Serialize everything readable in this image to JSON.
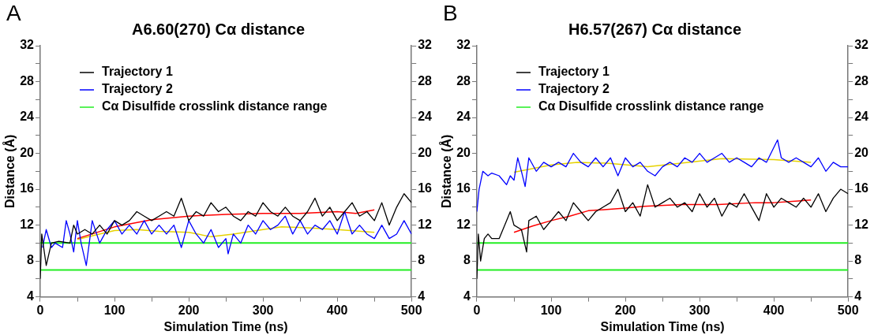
{
  "chart_data": [
    {
      "type": "line",
      "title": "A6.60(270) Cα distance",
      "xlabel": "Simulation Time (ns)",
      "ylabel": "Distance (Å)",
      "annotations": [
        "A"
      ],
      "legend": "top left",
      "grid": false,
      "xlim": [
        0,
        500
      ],
      "xticks": [
        0,
        {
          "value": 50,
          "label": null
        },
        100,
        {
          "value": 150,
          "label": null
        },
        200,
        {
          "value": 250,
          "label": null
        },
        300,
        {
          "value": 350,
          "label": null
        },
        400,
        {
          "value": 450,
          "label": null
        },
        500
      ],
      "ylim": [
        4,
        32
      ],
      "yticks": [
        4,
        {
          "value": 6,
          "label": null
        },
        8,
        {
          "value": 10,
          "label": null
        },
        12,
        {
          "value": 14,
          "label": null
        },
        16,
        {
          "value": 18,
          "label": null
        },
        20,
        {
          "value": 22,
          "label": null
        },
        24,
        {
          "value": 26,
          "label": null
        },
        28,
        {
          "value": 30,
          "label": null
        },
        32
      ],
      "y2lim": [
        4,
        32
      ],
      "y2ticks": [
        4,
        {
          "value": 6,
          "label": null
        },
        8,
        {
          "value": 10,
          "label": null
        },
        12,
        {
          "value": 14,
          "label": null
        },
        16,
        {
          "value": 18,
          "label": null
        },
        20,
        {
          "value": 22,
          "label": null
        },
        24,
        {
          "value": 26,
          "label": null
        },
        28,
        {
          "value": 30,
          "label": null
        },
        32
      ],
      "ref_lines": [
        {
          "axis": "y",
          "value": 10,
          "label": "Cα Disulfide crosslink distance range",
          "color": "#22ee22"
        },
        {
          "axis": "y",
          "value": 7,
          "color": "#22ee22"
        }
      ],
      "series": [
        {
          "name": "Trajectory 1",
          "color": "#000000",
          "x": [
            0,
            2,
            8,
            15,
            25,
            40,
            45,
            50,
            60,
            70,
            80,
            90,
            100,
            110,
            120,
            130,
            140,
            150,
            160,
            170,
            180,
            190,
            200,
            210,
            220,
            230,
            240,
            250,
            260,
            270,
            280,
            290,
            300,
            310,
            320,
            330,
            340,
            350,
            360,
            370,
            380,
            390,
            400,
            410,
            420,
            430,
            440,
            450,
            460,
            470,
            480,
            490,
            500
          ],
          "values": [
            6,
            11,
            7.5,
            10,
            10.2,
            10,
            12,
            11,
            11.5,
            11,
            12,
            11,
            12.5,
            12,
            12.5,
            13.5,
            13,
            12.5,
            13,
            13.5,
            13,
            15,
            12.5,
            13.5,
            13,
            14.5,
            13.5,
            14,
            13,
            12.5,
            13.5,
            13,
            14.5,
            13.5,
            13,
            14,
            13,
            12.5,
            13.5,
            15,
            13,
            14,
            12.5,
            13.5,
            14.5,
            13,
            13.5,
            12.5,
            14.5,
            12,
            14,
            15.5,
            14.5
          ]
        },
        {
          "name": "Trajectory 2",
          "color": "#0000ff",
          "x": [
            3,
            8,
            15,
            20,
            30,
            35,
            40,
            45,
            50,
            55,
            62,
            70,
            80,
            90,
            100,
            110,
            120,
            130,
            140,
            150,
            160,
            170,
            180,
            190,
            200,
            210,
            220,
            230,
            240,
            250,
            253,
            260,
            270,
            280,
            290,
            300,
            310,
            320,
            330,
            340,
            350,
            360,
            370,
            380,
            390,
            400,
            410,
            420,
            430,
            440,
            450,
            460,
            470,
            480,
            490,
            500
          ],
          "values": [
            9.5,
            11.5,
            9.5,
            10,
            9.5,
            12.5,
            11,
            9,
            12.5,
            10,
            7.5,
            12.5,
            10,
            11.5,
            12.5,
            11,
            12,
            11,
            12.5,
            11,
            12,
            11,
            12,
            9.5,
            12.5,
            11,
            10,
            11.5,
            9.5,
            10.5,
            8.8,
            11,
            10,
            12,
            11,
            12.5,
            11.5,
            12,
            13,
            11,
            12.5,
            11,
            12,
            11.5,
            12.5,
            11,
            13.5,
            11,
            12,
            11,
            10.5,
            12,
            10.5,
            11,
            12.5,
            11
          ]
        },
        {
          "type": "line",
          "color": "#ff0000",
          "x": [
            50,
            100,
            150,
            200,
            250,
            300,
            350,
            400,
            425,
            450
          ],
          "values": [
            10.5,
            11.8,
            12.6,
            13,
            13.2,
            13.3,
            13.3,
            13.5,
            13.3,
            13.7
          ]
        },
        {
          "type": "line",
          "color": "#e6d200",
          "x": [
            50,
            75,
            100,
            130,
            160,
            200,
            230,
            260,
            300,
            325,
            360,
            400,
            450
          ],
          "values": [
            10.4,
            10.9,
            11.4,
            11.5,
            11.3,
            11.2,
            10.7,
            11,
            11.5,
            11.8,
            11.7,
            11.5,
            11.2
          ]
        }
      ]
    },
    {
      "type": "line",
      "title": "H6.57(267) Cα distance",
      "xlabel": "Simulation Time (ns)",
      "ylabel": "Distance (Å)",
      "annotations": [
        "B"
      ],
      "legend": "top left",
      "grid": false,
      "xlim": [
        0,
        500
      ],
      "xticks": [
        0,
        {
          "value": 50,
          "label": null
        },
        100,
        {
          "value": 150,
          "label": null
        },
        200,
        {
          "value": 250,
          "label": null
        },
        300,
        {
          "value": 350,
          "label": null
        },
        400,
        {
          "value": 450,
          "label": null
        },
        500
      ],
      "ylim": [
        4,
        32
      ],
      "yticks": [
        4,
        {
          "value": 6,
          "label": null
        },
        8,
        {
          "value": 10,
          "label": null
        },
        12,
        {
          "value": 14,
          "label": null
        },
        16,
        {
          "value": 18,
          "label": null
        },
        20,
        {
          "value": 22,
          "label": null
        },
        24,
        {
          "value": 26,
          "label": null
        },
        28,
        {
          "value": 30,
          "label": null
        },
        32
      ],
      "y2lim": [
        4,
        32
      ],
      "y2ticks": [
        4,
        {
          "value": 6,
          "label": null
        },
        8,
        {
          "value": 10,
          "label": null
        },
        12,
        {
          "value": 14,
          "label": null
        },
        16,
        {
          "value": 18,
          "label": null
        },
        20,
        {
          "value": 22,
          "label": null
        },
        24,
        {
          "value": 26,
          "label": null
        },
        28,
        {
          "value": 30,
          "label": null
        },
        32
      ],
      "ref_lines": [
        {
          "axis": "y",
          "value": 10,
          "label": "Cα Disulfide crosslink distance range",
          "color": "#22ee22"
        },
        {
          "axis": "y",
          "value": 7,
          "color": "#22ee22"
        }
      ],
      "series": [
        {
          "name": "Trajectory 1",
          "color": "#000000",
          "x": [
            0,
            2,
            5,
            10,
            15,
            20,
            30,
            40,
            45,
            50,
            60,
            67,
            70,
            80,
            90,
            100,
            110,
            120,
            130,
            140,
            150,
            160,
            170,
            180,
            190,
            200,
            210,
            220,
            230,
            240,
            250,
            260,
            270,
            280,
            290,
            300,
            310,
            320,
            330,
            340,
            350,
            360,
            370,
            380,
            390,
            400,
            410,
            420,
            430,
            440,
            450,
            460,
            470,
            480,
            490,
            500
          ],
          "values": [
            6,
            11,
            8,
            10.5,
            11,
            10.5,
            10.5,
            12.5,
            13.5,
            12,
            11.5,
            9,
            12.5,
            13,
            11.5,
            12.5,
            13.5,
            12.5,
            14.5,
            13.5,
            12.5,
            13.5,
            14,
            14.5,
            16,
            13.5,
            14.5,
            13,
            16.5,
            14,
            14.5,
            15,
            14,
            14.5,
            13.5,
            15.5,
            14,
            15,
            13,
            14.5,
            14,
            15.5,
            14,
            12.5,
            15.5,
            14,
            15,
            14.5,
            14,
            15,
            14,
            15.5,
            13.5,
            15,
            16,
            15.5
          ]
        },
        {
          "name": "Trajectory 2",
          "color": "#0000ff",
          "x": [
            0,
            3,
            8,
            15,
            20,
            30,
            40,
            45,
            50,
            55,
            60,
            65,
            70,
            80,
            90,
            100,
            110,
            120,
            130,
            140,
            150,
            160,
            170,
            180,
            190,
            200,
            210,
            220,
            230,
            240,
            250,
            260,
            270,
            280,
            290,
            300,
            310,
            320,
            330,
            340,
            350,
            360,
            370,
            380,
            390,
            405,
            410,
            420,
            430,
            440,
            450,
            460,
            470,
            480,
            490,
            500
          ],
          "values": [
            13.5,
            16,
            18,
            17.5,
            17.8,
            17.5,
            16.5,
            17.5,
            17,
            19.5,
            18,
            16.3,
            19.5,
            18,
            19,
            18.5,
            19,
            18.5,
            20,
            19,
            18.5,
            19.5,
            18.5,
            19.5,
            17.5,
            19.5,
            18.5,
            19,
            18,
            17.5,
            18.5,
            19,
            18.5,
            19.5,
            19,
            20,
            19,
            19.5,
            20,
            19,
            19.5,
            19,
            18.5,
            19.5,
            19,
            21.5,
            19.5,
            19,
            19.5,
            19,
            18.5,
            19.5,
            18,
            19,
            18.5,
            18.5
          ]
        },
        {
          "type": "line",
          "color": "#ff0000",
          "x": [
            50,
            75,
            100,
            125,
            150,
            200,
            225,
            275,
            325,
            375,
            400,
            450
          ],
          "values": [
            11.2,
            11.9,
            12.5,
            13,
            13.6,
            13.9,
            14.1,
            14.3,
            14.3,
            14.5,
            14.5,
            14.8
          ]
        },
        {
          "type": "line",
          "color": "#e6d200",
          "x": [
            50,
            100,
            135,
            175,
            230,
            275,
            330,
            400,
            450
          ],
          "values": [
            17.9,
            18.7,
            19,
            18.9,
            18.5,
            18.9,
            19.4,
            19.3,
            19
          ]
        }
      ]
    }
  ]
}
